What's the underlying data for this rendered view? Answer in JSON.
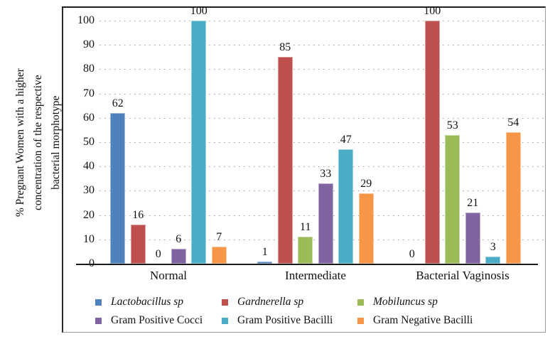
{
  "chart_data": {
    "type": "bar",
    "title": "",
    "ylabel": "% Pregnant Women with a higher concentration of the respective bacterial morphotype",
    "ylabel_lines": [
      "% Pregnant Women with a higher",
      "concentration of the respective",
      "bacterial morphotype"
    ],
    "xlabel": "",
    "categories": [
      "Normal",
      "Intermediate",
      "Bacterial Vaginosis"
    ],
    "series": [
      {
        "name": "Lactobacillus sp",
        "italic": true,
        "color": "#4F81BD",
        "values": [
          62,
          1,
          0
        ]
      },
      {
        "name": "Gardnerella sp",
        "italic": true,
        "color": "#C0504D",
        "values": [
          16,
          85,
          100
        ]
      },
      {
        "name": "Mobiluncus sp",
        "italic": true,
        "color": "#9BBB59",
        "values": [
          0,
          11,
          53
        ]
      },
      {
        "name": "Gram Positive Cocci",
        "italic": false,
        "color": "#8064A2",
        "values": [
          6,
          33,
          21
        ]
      },
      {
        "name": "Gram Positive Bacilli",
        "italic": false,
        "color": "#4BACC6",
        "values": [
          100,
          47,
          3
        ]
      },
      {
        "name": "Gram Negative Bacilli",
        "italic": false,
        "color": "#F79646",
        "values": [
          7,
          29,
          54
        ]
      }
    ],
    "y_ticks": [
      0,
      10,
      20,
      30,
      40,
      50,
      60,
      70,
      80,
      90,
      100
    ],
    "ylim": [
      0,
      100
    ],
    "grid": "horizontal-dotted",
    "data_labels": true,
    "legend_position": "bottom",
    "colors": {
      "axis": "#1a1a1a",
      "gridline": "#9e9e9e",
      "text": "#111111",
      "frame": "#9a9a9a"
    }
  }
}
